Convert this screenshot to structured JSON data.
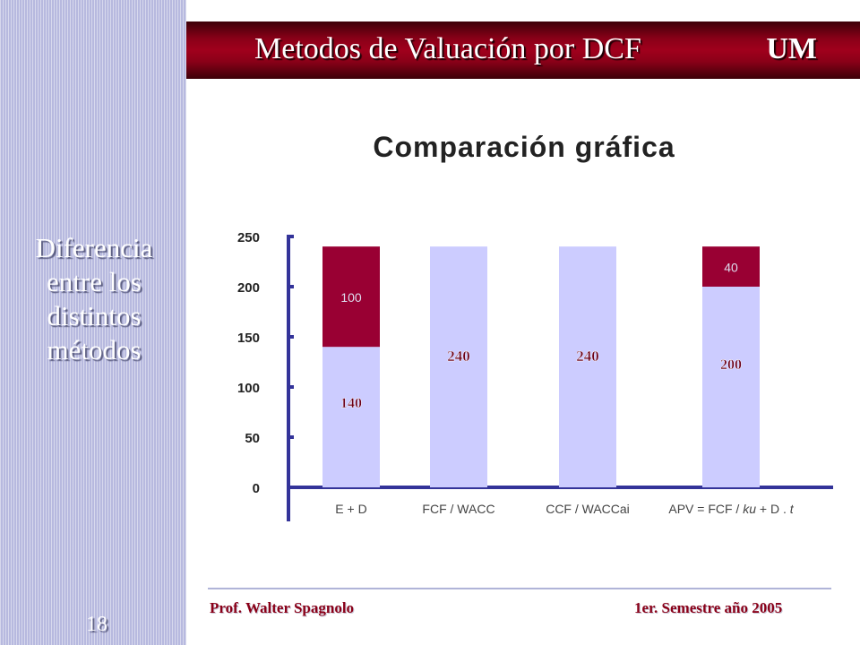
{
  "sidebar": {
    "title": "Diferencia entre los distintos métodos",
    "page_number": "18"
  },
  "header": {
    "title": "Metodos de Valuación por DCF",
    "logo_text": "UM"
  },
  "footer": {
    "author": "Prof. Walter Spagnolo",
    "semester": "1er. Semestre año 2005"
  },
  "colors": {
    "light_bar": "#ccccff",
    "dark_bar": "#990033",
    "axis": "#333399",
    "label_text": "#6b0018"
  },
  "chart_data": {
    "type": "bar",
    "stacked": true,
    "title": "Comparación gráfica",
    "xlabel": "",
    "ylabel": "",
    "ylim": [
      0,
      250
    ],
    "yticks": [
      0,
      50,
      100,
      150,
      200,
      250
    ],
    "grid": false,
    "categories": [
      "E + D",
      "FCF / WACC",
      "CCF / WACCai",
      "APV = FCF / ku + D . t"
    ],
    "series": [
      {
        "values": [
          140,
          240,
          240,
          200
        ],
        "color": "#ccccff",
        "labels": [
          "140",
          "240",
          "240",
          "200"
        ]
      },
      {
        "values": [
          100,
          0,
          0,
          40
        ],
        "color": "#990033",
        "labels": [
          "100",
          "",
          "",
          "40"
        ]
      }
    ]
  }
}
